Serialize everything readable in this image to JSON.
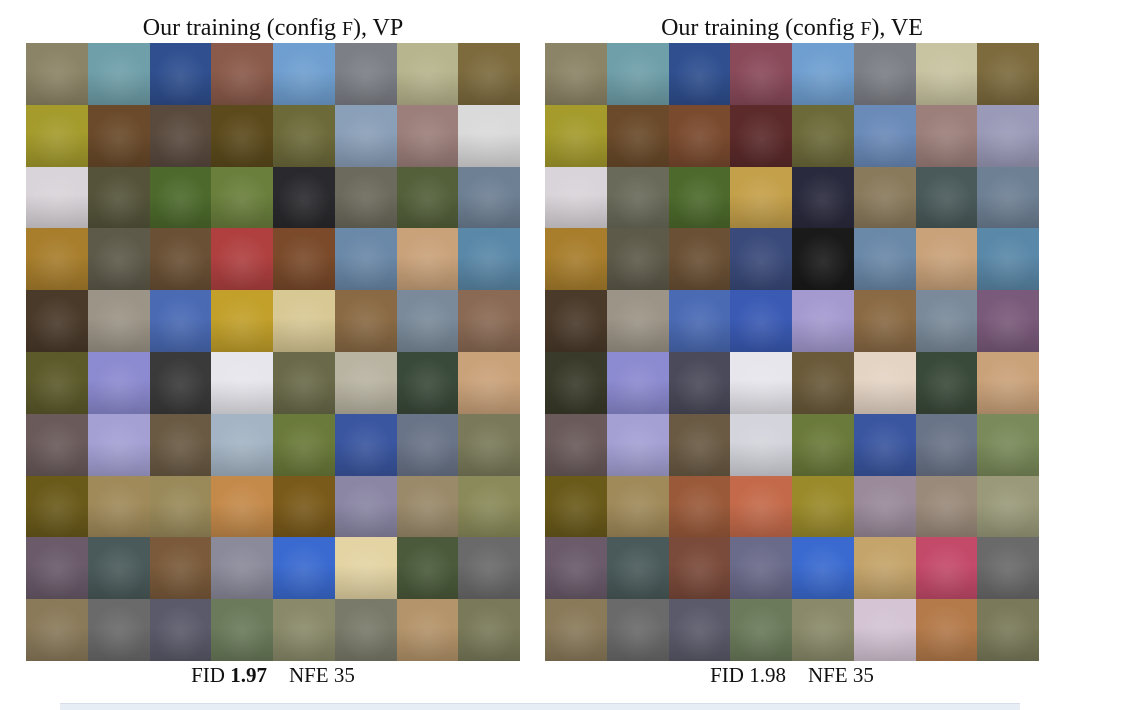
{
  "panels": [
    {
      "id": "vp",
      "title": {
        "prefix": "Our training (config ",
        "config_letter": "F",
        "suffix": "), VP"
      },
      "caption": {
        "fid_label": "FID",
        "fid_value": "1.97",
        "fid_bold": true,
        "nfe_label": "NFE",
        "nfe_value": "35"
      },
      "grid": {
        "rows": 10,
        "cols": 8
      },
      "tile_colors": [
        [
          "#8c8466",
          "#6f9fa9",
          "#2f4f8f",
          "#8a5a4a",
          "#6f9fd0",
          "#7c7f86",
          "#b7b58d",
          "#7d6b3e"
        ],
        [
          "#a49b2c",
          "#6a4a2a",
          "#5a4a3e",
          "#5c4a1c",
          "#6d6a3a",
          "#8a9fb8",
          "#9c7f7a",
          "#dadada"
        ],
        [
          "#d9d4d9",
          "#55543a",
          "#4d6a2c",
          "#6a7f3c",
          "#2a2a2e",
          "#6c6a5c",
          "#53603a",
          "#6e8094"
        ],
        [
          "#a87e2c",
          "#5e5a4a",
          "#6a5034",
          "#b04040",
          "#7a4a2a",
          "#6a88a8",
          "#c9a27a",
          "#5a88a8"
        ],
        [
          "#4a3a2a",
          "#9c9486",
          "#4a6ab4",
          "#c2a02a",
          "#d8c894",
          "#8a6a44",
          "#7a8a9a",
          "#8a6a54"
        ],
        [
          "#5c5a2a",
          "#8c8ad0",
          "#3a3a3a",
          "#e6e6ec",
          "#6a6a4a",
          "#b9b4a2",
          "#3a4a3a",
          "#caa27a"
        ],
        [
          "#6a5a5a",
          "#a4a0d4",
          "#6a5a44",
          "#a4b4c4",
          "#6a7a3a",
          "#3a56a0",
          "#6a7488",
          "#7a7a5a"
        ],
        [
          "#6a5a1a",
          "#a08a5a",
          "#9a8a5a",
          "#c48a4a",
          "#7a5a1a",
          "#8a86a4",
          "#9a8a6a",
          "#8a8a5a"
        ],
        [
          "#6a5a6a",
          "#4a5a5a",
          "#7a5a3a",
          "#8a8a9a",
          "#3a6ad0",
          "#e4d4a4",
          "#4a5a3a",
          "#6a6a6a"
        ],
        [
          "#8a7a5a",
          "#6a6a6a",
          "#5a5a6a",
          "#6a7a5a",
          "#8a8a6a",
          "#7a7a6a",
          "#b4946a",
          "#7a7a5a"
        ]
      ]
    },
    {
      "id": "ve",
      "title": {
        "prefix": "Our training (config ",
        "config_letter": "F",
        "suffix": "), VE"
      },
      "caption": {
        "fid_label": "FID",
        "fid_value": "1.98",
        "fid_bold": false,
        "nfe_label": "NFE",
        "nfe_value": "35"
      },
      "grid": {
        "rows": 10,
        "cols": 8
      },
      "tile_colors": [
        [
          "#8c8466",
          "#6f9fa9",
          "#2f4f8f",
          "#8a4a5a",
          "#6f9fd0",
          "#7c7f86",
          "#c8c3a0",
          "#7d6b3e"
        ],
        [
          "#a49b2c",
          "#6a4a2a",
          "#7a4a2e",
          "#5c2a2a",
          "#6d6a3a",
          "#6a8ab8",
          "#9c7f7a",
          "#9a9ab8"
        ],
        [
          "#d9d4d9",
          "#6a6a5a",
          "#4d6a2c",
          "#c4a04a",
          "#2a2a3e",
          "#8a7a5c",
          "#4a5a5a",
          "#6e8094"
        ],
        [
          "#a87e2c",
          "#5e5a4a",
          "#6a5034",
          "#3a4a7a",
          "#1a1a1a",
          "#6a88a8",
          "#c9a27a",
          "#5a88a8"
        ],
        [
          "#4a3a2a",
          "#9c9486",
          "#4a6ab4",
          "#3a5ab4",
          "#a49ad0",
          "#8a6a44",
          "#7a8a9a",
          "#7a5a7a"
        ],
        [
          "#3a3a2a",
          "#8c8ad0",
          "#4a4a5a",
          "#e6e6ec",
          "#6a5a3a",
          "#e4d4c4",
          "#3a4a3a",
          "#caa27a"
        ],
        [
          "#6a5a5a",
          "#a4a0d4",
          "#6a5a44",
          "#d4d4dc",
          "#6a7a3a",
          "#3a56a0",
          "#6a7488",
          "#7a8a5a"
        ],
        [
          "#6a5a1a",
          "#a08a5a",
          "#9a5a3a",
          "#c46a4a",
          "#9a8a2a",
          "#9a8a9a",
          "#9a8a7a",
          "#9a9a7a"
        ],
        [
          "#6a5a6a",
          "#4a5a5a",
          "#7a4a3a",
          "#6a6a8a",
          "#3a6ad0",
          "#c4a46a",
          "#c44a6a",
          "#6a6a6a"
        ],
        [
          "#8a7a5a",
          "#6a6a6a",
          "#5a5a6a",
          "#6a7a5a",
          "#8a8a6a",
          "#d4c4d4",
          "#b47a4a",
          "#7a7a5a"
        ]
      ]
    }
  ]
}
